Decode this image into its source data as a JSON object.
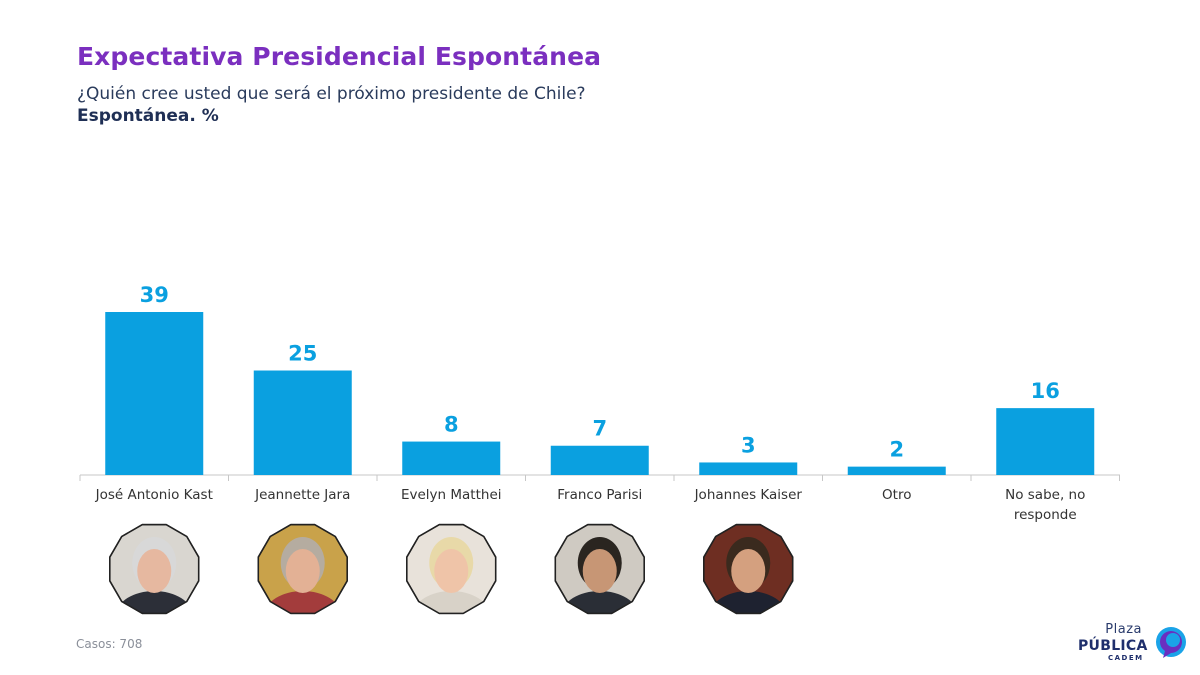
{
  "header": {
    "title": "Expectativa Presidencial Espontánea",
    "subtitle": "¿Quién cree usted que será el próximo presidente de Chile?",
    "unit_label": "Espontánea. %"
  },
  "footer": {
    "cases_label": "Casos: 708"
  },
  "logo": {
    "line1": "Plaza",
    "line2": "PÚBLICA",
    "line3": "CADEM",
    "icon": "speech-bubble-logo-icon"
  },
  "colors": {
    "bar": "#0aa0e0",
    "value_label": "#0aa0e0",
    "title": "#7b2fbf",
    "axis": "#c7c7c7",
    "category_text": "#333333"
  },
  "chart_data": {
    "type": "bar",
    "title": "Expectativa Presidencial Espontánea",
    "subtitle": "¿Quién cree usted que será el próximo presidente de Chile?",
    "ylabel": "Espontánea. %",
    "xlabel": "",
    "categories": [
      "José Antonio Kast",
      "Jeannette Jara",
      "Evelyn Matthei",
      "Franco Parisi",
      "Johannes Kaiser",
      "Otro",
      "No sabe, no responde"
    ],
    "values": [
      39,
      25,
      8,
      7,
      3,
      2,
      16
    ],
    "ylim": [
      0,
      39
    ],
    "grid": false,
    "legend": "none",
    "photos": [
      "kast-photo",
      "jara-photo",
      "matthei-photo",
      "parisi-photo",
      "kaiser-photo",
      null,
      null
    ]
  }
}
